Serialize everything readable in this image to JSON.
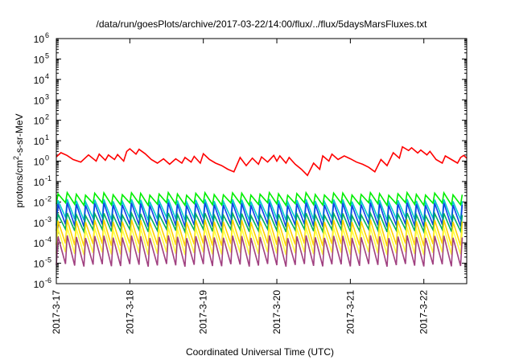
{
  "chart_data": {
    "type": "line",
    "title": "/data/run/goesPlots/archive/2017-03-22/14:00/flux/../flux/5daysMarsFluxes.txt",
    "xlabel": "Coordinated Universal Time (UTC)",
    "ylabel": {
      "pre": "protons/cm",
      "sup": "2",
      "post": "-s-sr-MeV"
    },
    "yscale": "log",
    "ylim": [
      1e-06,
      1000000.0
    ],
    "y_ticks": [
      {
        "base": "10",
        "exp": "-6",
        "value": 1e-06
      },
      {
        "base": "10",
        "exp": "-5",
        "value": 1e-05
      },
      {
        "base": "10",
        "exp": "-4",
        "value": 0.0001
      },
      {
        "base": "10",
        "exp": "-3",
        "value": 0.001
      },
      {
        "base": "10",
        "exp": "-2",
        "value": 0.01
      },
      {
        "base": "10",
        "exp": "-1",
        "value": 0.1
      },
      {
        "base": "10",
        "exp": "0",
        "value": 1
      },
      {
        "base": "10",
        "exp": "1",
        "value": 10
      },
      {
        "base": "10",
        "exp": "2",
        "value": 100
      },
      {
        "base": "10",
        "exp": "3",
        "value": 1000
      },
      {
        "base": "10",
        "exp": "4",
        "value": 10000
      },
      {
        "base": "10",
        "exp": "5",
        "value": 100000
      },
      {
        "base": "10",
        "exp": "6",
        "value": 1000000
      }
    ],
    "x_ticks": [
      "2017-3-17",
      "2017-3-18",
      "2017-3-19",
      "2017-3-20",
      "2017-3-21",
      "2017-3-22"
    ],
    "xlim": [
      "2017-03-17 00:00",
      "2017-03-22 14:00"
    ],
    "grid": false,
    "series": [
      {
        "color": "#ff0000",
        "times": [
          "2017-03-17 00:00",
          "2017-03-17 01:30",
          "2017-03-17 03:30",
          "2017-03-17 05:30",
          "2017-03-17 08:00",
          "2017-03-17 10:30",
          "2017-03-17 13:00",
          "2017-03-17 14:00",
          "2017-03-17 16:00",
          "2017-03-17 17:00",
          "2017-03-17 19:00",
          "2017-03-17 20:00",
          "2017-03-17 22:00",
          "2017-03-17 23:00",
          "2017-03-18 00:00",
          "2017-03-18 02:00",
          "2017-03-18 03:00",
          "2017-03-18 05:00",
          "2017-03-18 07:00",
          "2017-03-18 09:00",
          "2017-03-18 11:00",
          "2017-03-18 13:00",
          "2017-03-18 15:00",
          "2017-03-18 17:00",
          "2017-03-18 18:00",
          "2017-03-18 20:00",
          "2017-03-18 21:00",
          "2017-03-18 23:00",
          "2017-03-19 00:00",
          "2017-03-19 02:00",
          "2017-03-19 04:00",
          "2017-03-19 06:00",
          "2017-03-19 08:00",
          "2017-03-19 10:00",
          "2017-03-19 12:00",
          "2017-03-19 14:00",
          "2017-03-19 16:00",
          "2017-03-19 18:00",
          "2017-03-19 19:00",
          "2017-03-19 21:00",
          "2017-03-19 23:00",
          "2017-03-20 00:00",
          "2017-03-20 01:00",
          "2017-03-20 03:00",
          "2017-03-20 04:00",
          "2017-03-20 06:00",
          "2017-03-20 08:00",
          "2017-03-20 10:00",
          "2017-03-20 12:00",
          "2017-03-20 14:00",
          "2017-03-20 15:00",
          "2017-03-20 17:00",
          "2017-03-20 18:00",
          "2017-03-20 20:00",
          "2017-03-20 22:00",
          "2017-03-21 00:00",
          "2017-03-21 02:00",
          "2017-03-21 04:00",
          "2017-03-21 06:00",
          "2017-03-21 08:00",
          "2017-03-21 10:00",
          "2017-03-21 12:00",
          "2017-03-21 14:00",
          "2017-03-21 16:00",
          "2017-03-21 17:00",
          "2017-03-21 19:00",
          "2017-03-21 20:00",
          "2017-03-21 22:00",
          "2017-03-21 23:00",
          "2017-03-22 01:00",
          "2017-03-22 02:00",
          "2017-03-22 04:00",
          "2017-03-22 06:00",
          "2017-03-22 07:00",
          "2017-03-22 09:00",
          "2017-03-22 11:00",
          "2017-03-22 12:00",
          "2017-03-22 13:00",
          "2017-03-22 14:00"
        ],
        "values": [
          1.6,
          2.6,
          1.9,
          1.2,
          0.9,
          2.0,
          1.0,
          2.2,
          1.1,
          2.0,
          1.2,
          2.1,
          1.0,
          3.0,
          4.0,
          2.2,
          3.8,
          2.3,
          1.2,
          0.8,
          1.3,
          0.7,
          1.3,
          0.8,
          1.5,
          0.9,
          1.7,
          0.8,
          2.3,
          1.2,
          0.8,
          0.6,
          0.4,
          0.3,
          1.5,
          0.6,
          1.4,
          0.7,
          1.6,
          0.9,
          1.9,
          1.0,
          1.8,
          0.8,
          1.5,
          0.7,
          0.4,
          0.2,
          0.8,
          0.4,
          1.8,
          1.0,
          2.2,
          1.2,
          1.8,
          1.3,
          0.9,
          0.7,
          0.5,
          0.3,
          1.2,
          0.6,
          2.6,
          1.4,
          5.0,
          3.3,
          4.5,
          2.5,
          3.5,
          2.0,
          3.0,
          1.2,
          0.8,
          1.8,
          1.2,
          0.8,
          1.5,
          1.9,
          1.4
        ]
      },
      {
        "color": "#00ee00",
        "pattern": "sawtooth",
        "period_hours": 3,
        "peak": 0.025,
        "trough": 0.008
      },
      {
        "color": "#00cccc",
        "pattern": "sawtooth",
        "period_hours": 3,
        "peak": 0.012,
        "trough": 0.0015
      },
      {
        "color": "#1040e8",
        "pattern": "sawtooth",
        "period_hours": 3,
        "peak": 0.008,
        "trough": 0.0007
      },
      {
        "color": "#00b060",
        "pattern": "sawtooth",
        "period_hours": 3,
        "peak": 0.0025,
        "trough": 0.0004
      },
      {
        "color": "#ffd000",
        "pattern": "sawtooth",
        "period_hours": 3,
        "peak": 0.0012,
        "trough": 8e-05
      },
      {
        "color": "#ffff40",
        "pattern": "sawtooth",
        "period_hours": 3,
        "peak": 0.0005,
        "trough": 3e-05
      },
      {
        "color": "#a04080",
        "pattern": "sawtooth",
        "period_hours": 3,
        "peak": 0.0002,
        "trough": 8e-06
      }
    ]
  }
}
